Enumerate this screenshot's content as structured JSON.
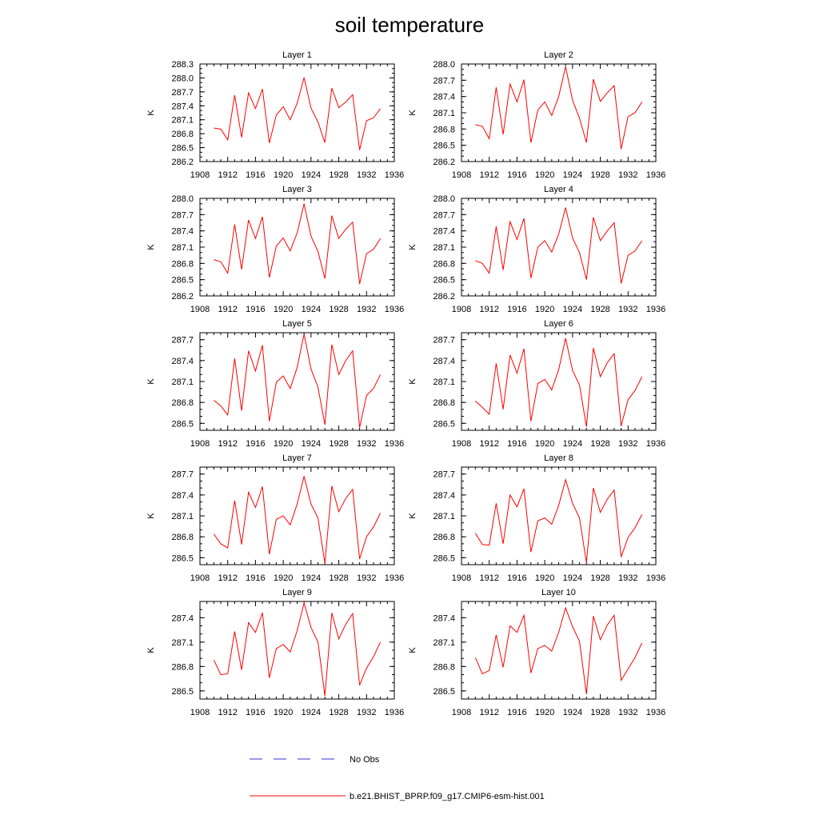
{
  "title": "soil temperature",
  "colors": {
    "model_line": "#ff0000",
    "obs_line": "#3333cc",
    "axis": "#000000"
  },
  "legend": {
    "obs_label": "No Obs",
    "model_label": "b.e21.BHIST_BPRP.f09_g17.CMIP6-esm-hist.001"
  },
  "chart_data": [
    {
      "type": "line",
      "title": "Layer 1",
      "ylabel": "K",
      "xlim": [
        1908,
        1936
      ],
      "ylim": [
        286.2,
        288.3
      ],
      "xticks": [
        "1908",
        "1912",
        "1916",
        "1920",
        "1924",
        "1928",
        "1932",
        "1936"
      ],
      "yticks": [
        "286.2",
        "286.5",
        "286.8",
        "287.1",
        "287.4",
        "287.7",
        "288.0",
        "288.3"
      ],
      "x": [
        1910,
        1911,
        1912,
        1913,
        1914,
        1915,
        1916,
        1917,
        1918,
        1919,
        1920,
        1921,
        1922,
        1923,
        1924,
        1925,
        1926,
        1927,
        1928,
        1929,
        1930,
        1931,
        1932,
        1933,
        1934
      ],
      "series": [
        {
          "name": "b.e21.BHIST_BPRP.f09_g17.CMIP6-esm-hist.001",
          "values": [
            286.92,
            286.9,
            286.67,
            287.63,
            286.72,
            287.68,
            287.34,
            287.76,
            286.6,
            287.2,
            287.38,
            287.1,
            287.45,
            288.01,
            287.35,
            287.05,
            286.61,
            287.78,
            287.36,
            287.48,
            287.64,
            286.45,
            287.08,
            287.14,
            287.34
          ]
        }
      ]
    },
    {
      "type": "line",
      "title": "Layer 2",
      "ylabel": "K",
      "xlim": [
        1908,
        1936
      ],
      "ylim": [
        286.2,
        288.0
      ],
      "xticks": [
        "1908",
        "1912",
        "1916",
        "1920",
        "1924",
        "1928",
        "1932",
        "1936"
      ],
      "yticks": [
        "286.2",
        "286.5",
        "286.8",
        "287.1",
        "287.4",
        "287.7",
        "288.0"
      ],
      "x": [
        1910,
        1911,
        1912,
        1913,
        1914,
        1915,
        1916,
        1917,
        1918,
        1919,
        1920,
        1921,
        1922,
        1923,
        1924,
        1925,
        1926,
        1927,
        1928,
        1929,
        1930,
        1931,
        1932,
        1933,
        1934
      ],
      "series": [
        {
          "name": "b.e21.BHIST_BPRP.f09_g17.CMIP6-esm-hist.001",
          "values": [
            286.88,
            286.85,
            286.62,
            287.57,
            286.7,
            287.63,
            287.3,
            287.71,
            286.55,
            287.15,
            287.3,
            287.05,
            287.4,
            287.95,
            287.33,
            287.0,
            286.55,
            287.72,
            287.31,
            287.47,
            287.6,
            286.43,
            287.03,
            287.1,
            287.3
          ]
        }
      ]
    },
    {
      "type": "line",
      "title": "Layer 3",
      "ylabel": "K",
      "xlim": [
        1908,
        1936
      ],
      "ylim": [
        286.2,
        288.0
      ],
      "xticks": [
        "1908",
        "1912",
        "1916",
        "1920",
        "1924",
        "1928",
        "1932",
        "1936"
      ],
      "yticks": [
        "286.2",
        "286.5",
        "286.8",
        "287.1",
        "287.4",
        "287.7",
        "288.0"
      ],
      "x": [
        1910,
        1911,
        1912,
        1913,
        1914,
        1915,
        1916,
        1917,
        1918,
        1919,
        1920,
        1921,
        1922,
        1923,
        1924,
        1925,
        1926,
        1927,
        1928,
        1929,
        1930,
        1931,
        1932,
        1933,
        1934
      ],
      "series": [
        {
          "name": "b.e21.BHIST_BPRP.f09_g17.CMIP6-esm-hist.001",
          "values": [
            286.87,
            286.83,
            286.62,
            287.52,
            286.69,
            287.6,
            287.26,
            287.66,
            286.54,
            287.12,
            287.27,
            287.03,
            287.36,
            287.9,
            287.3,
            287.02,
            286.52,
            287.68,
            287.26,
            287.43,
            287.56,
            286.42,
            286.98,
            287.06,
            287.26
          ]
        }
      ]
    },
    {
      "type": "line",
      "title": "Layer 4",
      "ylabel": "K",
      "xlim": [
        1908,
        1936
      ],
      "ylim": [
        286.2,
        288.0
      ],
      "xticks": [
        "1908",
        "1912",
        "1916",
        "1920",
        "1924",
        "1928",
        "1932",
        "1936"
      ],
      "yticks": [
        "286.2",
        "286.5",
        "286.8",
        "287.1",
        "287.4",
        "287.7",
        "288.0"
      ],
      "x": [
        1910,
        1911,
        1912,
        1913,
        1914,
        1915,
        1916,
        1917,
        1918,
        1919,
        1920,
        1921,
        1922,
        1923,
        1924,
        1925,
        1926,
        1927,
        1928,
        1929,
        1930,
        1931,
        1932,
        1933,
        1934
      ],
      "series": [
        {
          "name": "b.e21.BHIST_BPRP.f09_g17.CMIP6-esm-hist.001",
          "values": [
            286.85,
            286.8,
            286.62,
            287.48,
            286.68,
            287.57,
            287.24,
            287.63,
            286.53,
            287.1,
            287.22,
            287.01,
            287.34,
            287.83,
            287.27,
            287.0,
            286.5,
            287.65,
            287.22,
            287.4,
            287.55,
            286.43,
            286.95,
            287.03,
            287.22
          ]
        }
      ]
    },
    {
      "type": "line",
      "title": "Layer 5",
      "ylabel": "K",
      "xlim": [
        1908,
        1936
      ],
      "ylim": [
        286.4,
        287.8
      ],
      "xticks": [
        "1908",
        "1912",
        "1916",
        "1920",
        "1924",
        "1928",
        "1932",
        "1936"
      ],
      "yticks": [
        "286.5",
        "286.8",
        "287.1",
        "287.4",
        "287.7"
      ],
      "x": [
        1910,
        1911,
        1912,
        1913,
        1914,
        1915,
        1916,
        1917,
        1918,
        1919,
        1920,
        1921,
        1922,
        1923,
        1924,
        1925,
        1926,
        1927,
        1928,
        1929,
        1930,
        1931,
        1932,
        1933,
        1934
      ],
      "series": [
        {
          "name": "b.e21.BHIST_BPRP.f09_g17.CMIP6-esm-hist.001",
          "values": [
            286.83,
            286.75,
            286.62,
            287.43,
            286.68,
            287.54,
            287.25,
            287.62,
            286.53,
            287.09,
            287.18,
            287.0,
            287.3,
            287.78,
            287.28,
            287.02,
            286.48,
            287.63,
            287.2,
            287.4,
            287.54,
            286.44,
            286.9,
            287.0,
            287.2
          ]
        }
      ]
    },
    {
      "type": "line",
      "title": "Layer 6",
      "ylabel": "K",
      "xlim": [
        1908,
        1936
      ],
      "ylim": [
        286.4,
        287.8
      ],
      "xticks": [
        "1908",
        "1912",
        "1916",
        "1920",
        "1924",
        "1928",
        "1932",
        "1936"
      ],
      "yticks": [
        "286.5",
        "286.8",
        "287.1",
        "287.4",
        "287.7"
      ],
      "x": [
        1910,
        1911,
        1912,
        1913,
        1914,
        1915,
        1916,
        1917,
        1918,
        1919,
        1920,
        1921,
        1922,
        1923,
        1924,
        1925,
        1926,
        1927,
        1928,
        1929,
        1930,
        1931,
        1932,
        1933,
        1934
      ],
      "series": [
        {
          "name": "b.e21.BHIST_BPRP.f09_g17.CMIP6-esm-hist.001",
          "values": [
            286.82,
            286.73,
            286.63,
            287.36,
            286.7,
            287.48,
            287.22,
            287.57,
            286.53,
            287.07,
            287.13,
            286.98,
            287.27,
            287.72,
            287.26,
            287.05,
            286.45,
            287.58,
            287.17,
            287.37,
            287.5,
            286.46,
            286.84,
            286.97,
            287.17
          ]
        }
      ]
    },
    {
      "type": "line",
      "title": "Layer 7",
      "ylabel": "K",
      "xlim": [
        1908,
        1936
      ],
      "ylim": [
        286.4,
        287.8
      ],
      "xticks": [
        "1908",
        "1912",
        "1916",
        "1920",
        "1924",
        "1928",
        "1932",
        "1936"
      ],
      "yticks": [
        "286.5",
        "286.8",
        "287.1",
        "287.4",
        "287.7"
      ],
      "x": [
        1910,
        1911,
        1912,
        1913,
        1914,
        1915,
        1916,
        1917,
        1918,
        1919,
        1920,
        1921,
        1922,
        1923,
        1924,
        1925,
        1926,
        1927,
        1928,
        1929,
        1930,
        1931,
        1932,
        1933,
        1934
      ],
      "series": [
        {
          "name": "b.e21.BHIST_BPRP.f09_g17.CMIP6-esm-hist.001",
          "values": [
            286.84,
            286.7,
            286.64,
            287.32,
            286.69,
            287.44,
            287.22,
            287.52,
            286.55,
            287.05,
            287.1,
            286.97,
            287.27,
            287.67,
            287.27,
            287.07,
            286.42,
            287.53,
            287.16,
            287.35,
            287.48,
            286.48,
            286.8,
            286.94,
            287.14
          ]
        }
      ]
    },
    {
      "type": "line",
      "title": "Layer 8",
      "ylabel": "K",
      "xlim": [
        1908,
        1936
      ],
      "ylim": [
        286.4,
        287.8
      ],
      "xticks": [
        "1908",
        "1912",
        "1916",
        "1920",
        "1924",
        "1928",
        "1932",
        "1936"
      ],
      "yticks": [
        "286.5",
        "286.8",
        "287.1",
        "287.4",
        "287.7"
      ],
      "x": [
        1910,
        1911,
        1912,
        1913,
        1914,
        1915,
        1916,
        1917,
        1918,
        1919,
        1920,
        1921,
        1922,
        1923,
        1924,
        1925,
        1926,
        1927,
        1928,
        1929,
        1930,
        1931,
        1932,
        1933,
        1934
      ],
      "series": [
        {
          "name": "b.e21.BHIST_BPRP.f09_g17.CMIP6-esm-hist.001",
          "values": [
            286.85,
            286.69,
            286.68,
            287.28,
            286.7,
            287.4,
            287.23,
            287.49,
            286.58,
            287.03,
            287.07,
            286.98,
            287.25,
            287.62,
            287.28,
            287.07,
            286.43,
            287.5,
            287.15,
            287.34,
            287.47,
            286.51,
            286.79,
            286.93,
            287.12
          ]
        }
      ]
    },
    {
      "type": "line",
      "title": "Layer 9",
      "ylabel": "K",
      "xlim": [
        1908,
        1936
      ],
      "ylim": [
        286.4,
        287.6
      ],
      "xticks": [
        "1908",
        "1912",
        "1916",
        "1920",
        "1924",
        "1928",
        "1932",
        "1936"
      ],
      "yticks": [
        "286.5",
        "286.8",
        "287.1",
        "287.4"
      ],
      "x": [
        1910,
        1911,
        1912,
        1913,
        1914,
        1915,
        1916,
        1917,
        1918,
        1919,
        1920,
        1921,
        1922,
        1923,
        1924,
        1925,
        1926,
        1927,
        1928,
        1929,
        1930,
        1931,
        1932,
        1933,
        1934
      ],
      "series": [
        {
          "name": "b.e21.BHIST_BPRP.f09_g17.CMIP6-esm-hist.001",
          "values": [
            286.88,
            286.7,
            286.71,
            287.23,
            286.76,
            287.34,
            287.22,
            287.46,
            286.66,
            287.02,
            287.07,
            286.98,
            287.24,
            287.58,
            287.28,
            287.1,
            286.44,
            287.46,
            287.14,
            287.32,
            287.45,
            286.57,
            286.78,
            286.92,
            287.1
          ]
        }
      ]
    },
    {
      "type": "line",
      "title": "Layer 10",
      "ylabel": "K",
      "xlim": [
        1908,
        1936
      ],
      "ylim": [
        286.4,
        287.6
      ],
      "xticks": [
        "1908",
        "1912",
        "1916",
        "1920",
        "1924",
        "1928",
        "1932",
        "1936"
      ],
      "yticks": [
        "286.5",
        "286.8",
        "287.1",
        "287.4"
      ],
      "x": [
        1910,
        1911,
        1912,
        1913,
        1914,
        1915,
        1916,
        1917,
        1918,
        1919,
        1920,
        1921,
        1922,
        1923,
        1924,
        1925,
        1926,
        1927,
        1928,
        1929,
        1930,
        1931,
        1932,
        1933,
        1934
      ],
      "series": [
        {
          "name": "b.e21.BHIST_BPRP.f09_g17.CMIP6-esm-hist.001",
          "values": [
            286.91,
            286.71,
            286.75,
            287.19,
            286.79,
            287.3,
            287.22,
            287.43,
            286.72,
            287.02,
            287.06,
            286.99,
            287.22,
            287.52,
            287.29,
            287.11,
            286.46,
            287.42,
            287.13,
            287.31,
            287.43,
            286.63,
            286.77,
            286.91,
            287.09
          ]
        }
      ]
    }
  ]
}
